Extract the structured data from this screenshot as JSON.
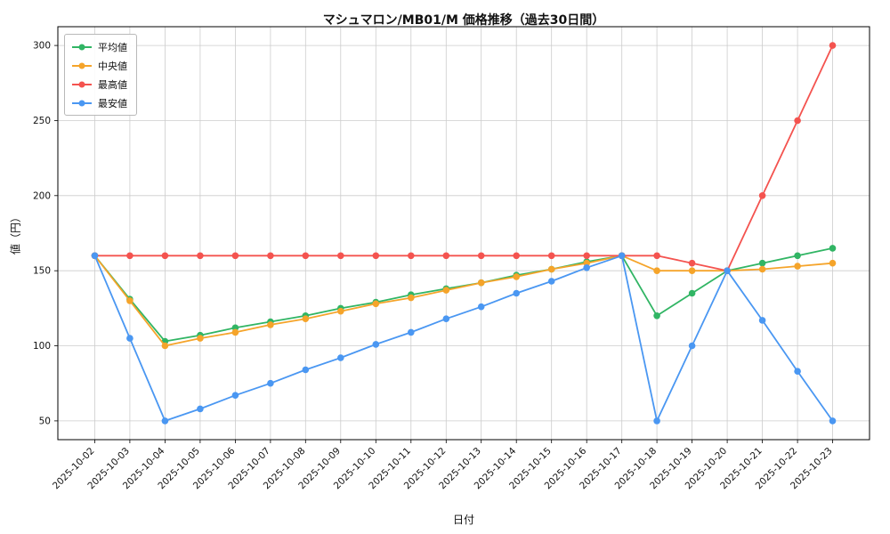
{
  "chart_data": {
    "type": "line",
    "title": "マシュマロン/MB01/M 価格推移（過去30日間）",
    "xlabel": "日付",
    "ylabel": "値（円）",
    "grid": true,
    "legend_position": "upper left",
    "ylim": [
      37.5,
      312.5
    ],
    "yticks": [
      50,
      100,
      150,
      200,
      250,
      300
    ],
    "categories": [
      "2025-10-02",
      "2025-10-03",
      "2025-10-04",
      "2025-10-05",
      "2025-10-06",
      "2025-10-07",
      "2025-10-08",
      "2025-10-09",
      "2025-10-10",
      "2025-10-11",
      "2025-10-12",
      "2025-10-13",
      "2025-10-14",
      "2025-10-15",
      "2025-10-16",
      "2025-10-17",
      "2025-10-18",
      "2025-10-19",
      "2025-10-20",
      "2025-10-21",
      "2025-10-22",
      "2025-10-23"
    ],
    "series": [
      {
        "id": "average",
        "name": "平均値",
        "color": "#31b564",
        "values": [
          160,
          131,
          103,
          107,
          112,
          116,
          120,
          125,
          129,
          134,
          138,
          142,
          147,
          151,
          156,
          160,
          120,
          135,
          150,
          155,
          160,
          165
        ]
      },
      {
        "id": "median",
        "name": "中央値",
        "color": "#f5a42a",
        "values": [
          160,
          130,
          100,
          105,
          109,
          114,
          118,
          123,
          128,
          132,
          137,
          142,
          146,
          151,
          155,
          160,
          150,
          150,
          150,
          151,
          153,
          155
        ]
      },
      {
        "id": "max",
        "name": "最高値",
        "color": "#f4534f",
        "values": [
          160,
          160,
          160,
          160,
          160,
          160,
          160,
          160,
          160,
          160,
          160,
          160,
          160,
          160,
          160,
          160,
          160,
          155,
          150,
          200,
          250,
          300
        ]
      },
      {
        "id": "min",
        "name": "最安値",
        "color": "#4a97f2",
        "values": [
          160,
          105,
          50,
          58,
          67,
          75,
          84,
          92,
          101,
          109,
          118,
          126,
          135,
          143,
          152,
          160,
          50,
          100,
          150,
          117,
          83,
          50
        ]
      }
    ]
  }
}
